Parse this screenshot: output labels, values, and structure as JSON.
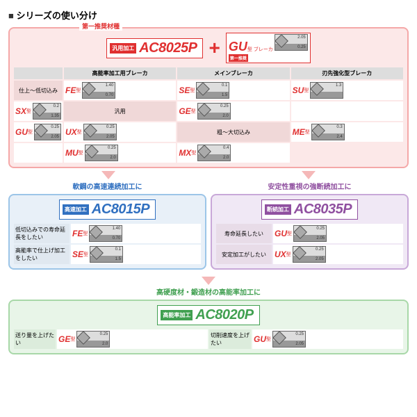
{
  "title": "シリーズの使い分け",
  "main": {
    "rec1": "第一推奨材種",
    "rec2": "型 ブレーカ",
    "tag": "汎用加工",
    "code": "AC8025P",
    "gu": "GU",
    "gu_sub": "第一推奨",
    "headers": [
      "",
      "高能率加工用ブレーカ",
      "メインブレーカ",
      "刃先強化型ブレーカ"
    ],
    "rows": [
      {
        "label": "仕上～低切込み",
        "cells": [
          {
            "t": "FE",
            "s": "型",
            "d1": "1.40",
            "d2": "0.70"
          },
          {
            "t": "SE",
            "s": "型",
            "d1": "0.1",
            "d2": "1.5"
          },
          {
            "t": "SU",
            "s": "型",
            "d1": "1.3",
            "d2": ""
          },
          {
            "t": "SX",
            "s": "型",
            "d1": "0.2",
            "d2": "1.35"
          }
        ]
      },
      {
        "label": "汎用",
        "cells": [
          {
            "t": "GE",
            "s": "型",
            "d1": "0.25",
            "d2": "2.0"
          },
          {
            "t": "",
            "s": "",
            "d1": "",
            "d2": ""
          },
          {
            "t": "GU",
            "s": "型",
            "d1": "0.25",
            "d2": "2.05"
          },
          {
            "t": "UX",
            "s": "型",
            "d1": "0.25",
            "d2": "2.05"
          }
        ]
      },
      {
        "label": "粗～大切込み",
        "cells": [
          {
            "t": "ME",
            "s": "型",
            "d1": "0.3",
            "d2": "2.4"
          },
          {
            "t": "",
            "s": "",
            "d1": "",
            "d2": ""
          },
          {
            "t": "MU",
            "s": "型",
            "d1": "0.25",
            "d2": "2.0"
          },
          {
            "t": "MX",
            "s": "型",
            "d1": "0.4",
            "d2": "2.0"
          }
        ]
      }
    ]
  },
  "blue": {
    "title": "軟鋼の高速連続加工に",
    "tag": "高速加工",
    "code": "AC8015P",
    "rows": [
      {
        "label": "低切込みでの寿命延長をしたい",
        "t": "FE",
        "s": "型",
        "d1": "1.40",
        "d2": "0.70"
      },
      {
        "label": "高能率で仕上げ加工をしたい",
        "t": "SE",
        "s": "型",
        "d1": "0.1",
        "d2": "1.5"
      }
    ]
  },
  "purple": {
    "title": "安定性重視の強断続加工に",
    "tag": "断続加工",
    "code": "AC8035P",
    "rows": [
      {
        "label": "寿命延長したい",
        "t": "GU",
        "s": "型",
        "d1": "0.25",
        "d2": "2.05"
      },
      {
        "label": "安定加工がしたい",
        "t": "UX",
        "s": "型",
        "d1": "0.25",
        "d2": "2.05"
      }
    ]
  },
  "green": {
    "title": "高硬度材・鍛造材の高能率加工に",
    "tag": "高能率加工",
    "code": "AC8020P",
    "rows": [
      {
        "label1": "送り量を上げたい",
        "t1": "GE",
        "s1": "型",
        "d1a": "0.25",
        "d1b": "2.0",
        "label2": "切削速度を上げたい",
        "t2": "GU",
        "s2": "型",
        "d2a": "0.25",
        "d2b": "2.05"
      }
    ]
  }
}
